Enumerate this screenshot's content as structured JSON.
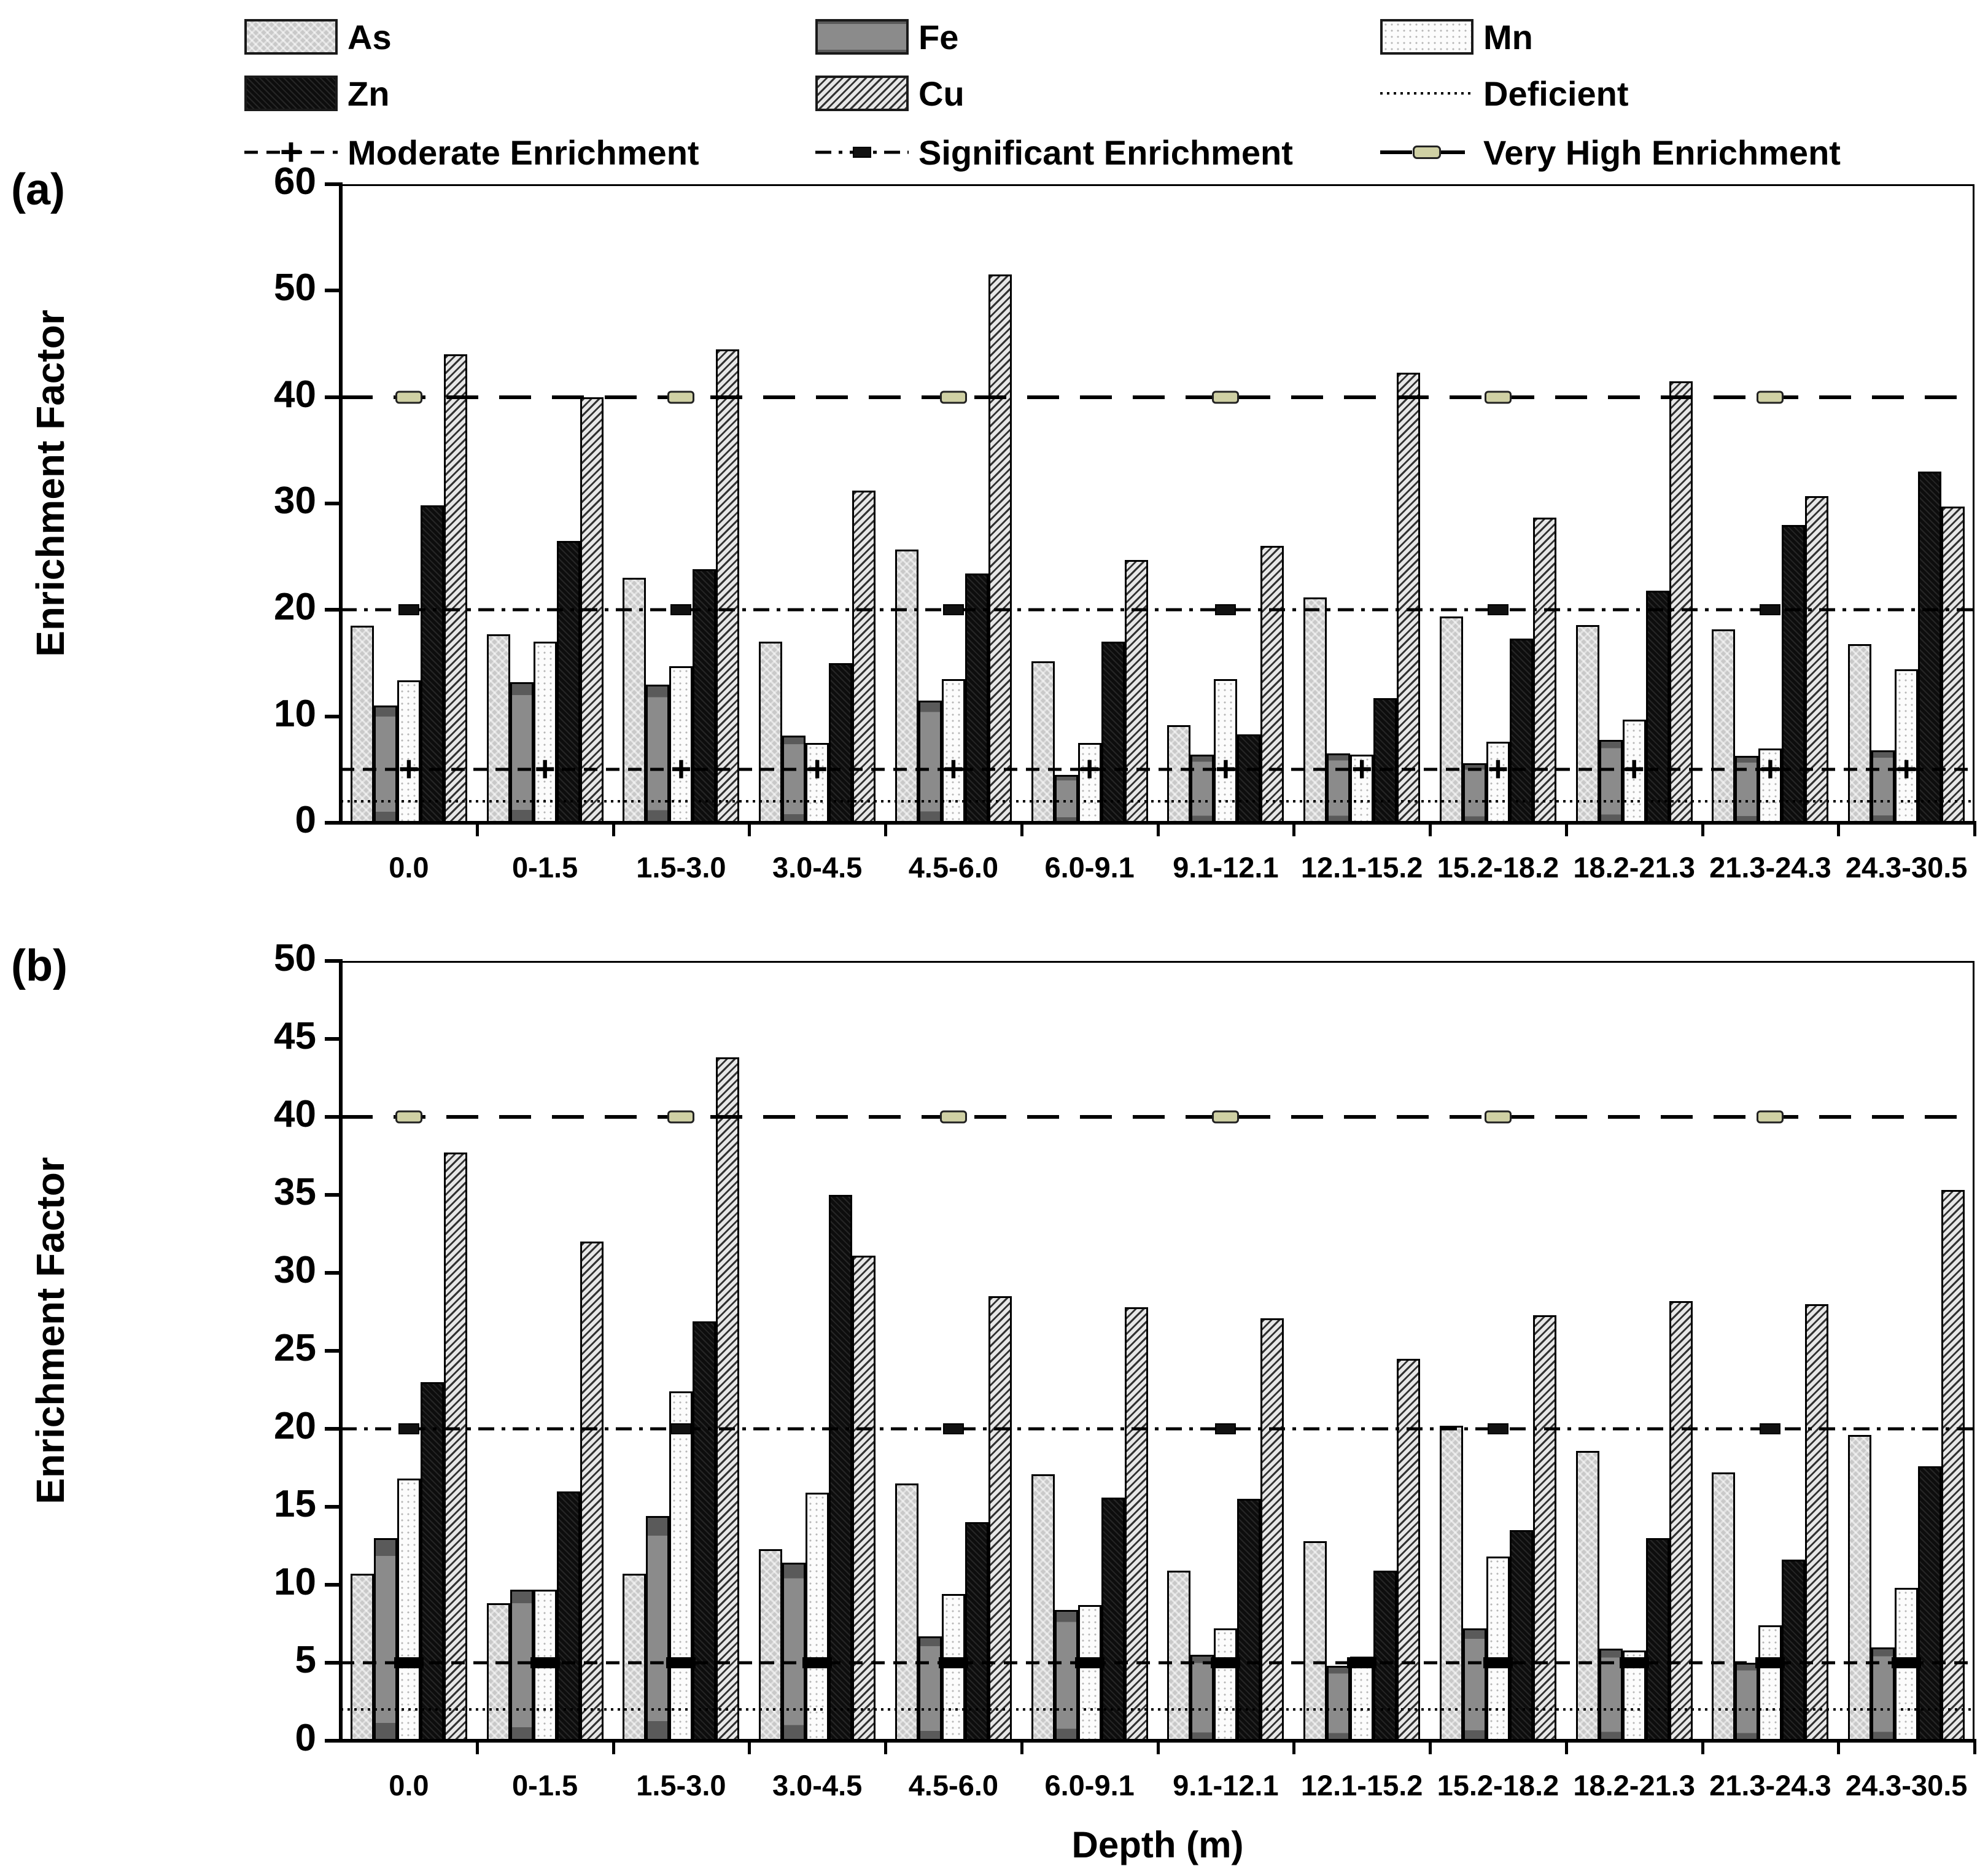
{
  "legend": {
    "rows": [
      [
        {
          "label": "As",
          "kind": "swatch",
          "key": "as"
        },
        {
          "label": "Fe",
          "kind": "swatch",
          "key": "fe"
        },
        {
          "label": "Mn",
          "kind": "swatch",
          "key": "mn"
        }
      ],
      [
        {
          "label": "Zn",
          "kind": "swatch",
          "key": "zn"
        },
        {
          "label": "Cu",
          "kind": "swatch",
          "key": "cu"
        },
        {
          "label": "Deficient",
          "kind": "line",
          "key": "deficient"
        }
      ],
      [
        {
          "label": "Moderate Enrichment",
          "kind": "line",
          "key": "moderate"
        },
        {
          "label": "Significant Enrichment",
          "kind": "line",
          "key": "significant"
        },
        {
          "label": "Very High Enrichment",
          "kind": "line",
          "key": "veryhigh"
        }
      ]
    ]
  },
  "colors": {
    "as_fill": "#c9c9c9",
    "fe_fill": "#8b8b8b",
    "mn_fill": "#fcfcfc",
    "zn_fill": "#0d0d0d",
    "cu_fill": "#c2c2c2",
    "line_color": "#000000"
  },
  "chart_data": [
    {
      "id": "a",
      "panel_label": "(a)",
      "type": "bar",
      "ylabel": "Enrichment Factor",
      "xlabel": "",
      "ylim": [
        0,
        60
      ],
      "ytick_step": 10,
      "grid": false,
      "legend_position": "top",
      "categories": [
        "0.0",
        "0-1.5",
        "1.5-3.0",
        "3.0-4.5",
        "4.5-6.0",
        "6.0-9.1",
        "9.1-12.1",
        "12.1-15.2",
        "15.2-18.2",
        "18.2-21.3",
        "21.3-24.3",
        "24.3-30.5"
      ],
      "series": [
        {
          "name": "As",
          "key": "as",
          "values": [
            18.5,
            17.7,
            23.0,
            17.0,
            25.7,
            15.2,
            9.2,
            21.2,
            19.4,
            18.6,
            18.2,
            16.8
          ]
        },
        {
          "name": "Fe",
          "key": "fe",
          "values": [
            11.0,
            13.2,
            13.0,
            8.2,
            11.5,
            4.5,
            6.4,
            6.5,
            5.6,
            7.8,
            6.3,
            6.8
          ]
        },
        {
          "name": "Mn",
          "key": "mn",
          "values": [
            13.4,
            17.0,
            14.7,
            7.5,
            13.5,
            7.5,
            13.5,
            6.4,
            7.6,
            9.7,
            7.0,
            14.4
          ]
        },
        {
          "name": "Zn",
          "key": "zn",
          "values": [
            29.8,
            26.5,
            23.8,
            15.0,
            23.4,
            17.0,
            8.3,
            11.7,
            17.3,
            21.8,
            28.0,
            33.0
          ]
        },
        {
          "name": "Cu",
          "key": "cu",
          "values": [
            44.0,
            40.0,
            44.5,
            31.2,
            51.5,
            24.7,
            26.0,
            42.3,
            28.7,
            41.5,
            30.7,
            29.7
          ]
        }
      ],
      "reference_lines": [
        {
          "label": "Deficient",
          "value": 2,
          "key": "deficient"
        },
        {
          "label": "Moderate Enrichment",
          "value": 5,
          "key": "moderate"
        },
        {
          "label": "Significant Enrichment",
          "value": 20,
          "key": "significant"
        },
        {
          "label": "Very High Enrichment",
          "value": 40,
          "key": "veryhigh"
        }
      ]
    },
    {
      "id": "b",
      "panel_label": "(b)",
      "type": "bar",
      "ylabel": "Enrichment Factor",
      "xlabel": "Depth (m)",
      "ylim": [
        0,
        50
      ],
      "ytick_step": 5,
      "grid": false,
      "legend_position": "top",
      "categories": [
        "0.0",
        "0-1.5",
        "1.5-3.0",
        "3.0-4.5",
        "4.5-6.0",
        "6.0-9.1",
        "9.1-12.1",
        "12.1-15.2",
        "15.2-18.2",
        "18.2-21.3",
        "21.3-24.3",
        "24.3-30.5"
      ],
      "series": [
        {
          "name": "As",
          "key": "as",
          "values": [
            10.7,
            8.8,
            10.7,
            12.3,
            16.5,
            17.1,
            10.9,
            12.8,
            20.2,
            18.6,
            17.2,
            19.6
          ]
        },
        {
          "name": "Fe",
          "key": "fe",
          "values": [
            13.0,
            9.7,
            14.4,
            11.4,
            6.7,
            8.4,
            5.5,
            4.8,
            7.2,
            5.9,
            5.0,
            6.0
          ]
        },
        {
          "name": "Mn",
          "key": "mn",
          "values": [
            16.8,
            9.7,
            22.4,
            15.9,
            9.4,
            8.7,
            7.2,
            5.4,
            11.8,
            5.8,
            7.4,
            9.8
          ]
        },
        {
          "name": "Zn",
          "key": "zn",
          "values": [
            23.0,
            16.0,
            26.9,
            35.0,
            14.0,
            15.6,
            15.5,
            10.9,
            13.5,
            13.0,
            11.6,
            17.6
          ]
        },
        {
          "name": "Cu",
          "key": "cu",
          "values": [
            37.7,
            32.0,
            43.8,
            31.1,
            28.5,
            27.8,
            27.1,
            24.5,
            27.3,
            28.2,
            28.0,
            35.3
          ]
        }
      ],
      "reference_lines": [
        {
          "label": "Deficient",
          "value": 2,
          "key": "deficient"
        },
        {
          "label": "Moderate Enrichment",
          "value": 5,
          "key": "moderate"
        },
        {
          "label": "Significant Enrichment",
          "value": 20,
          "key": "significant"
        },
        {
          "label": "Very High Enrichment",
          "value": 40,
          "key": "veryhigh"
        }
      ]
    }
  ]
}
